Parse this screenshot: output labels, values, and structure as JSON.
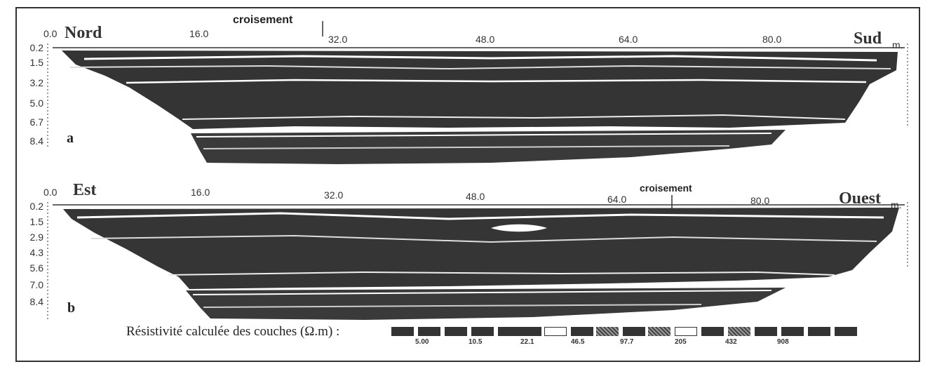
{
  "panel_a": {
    "letter": "a",
    "left_label": "Nord",
    "right_label": "Sud",
    "unit": "m.",
    "crossing_label": "croisement",
    "x_ticks": [
      "0.0",
      "16.0",
      "32.0",
      "48.0",
      "64.0",
      "80.0"
    ],
    "depth_ticks": [
      "0.2",
      "1.5",
      "3.2",
      "5.0",
      "6.7",
      "8.4"
    ]
  },
  "panel_b": {
    "letter": "b",
    "left_label": "Est",
    "right_label": "Ouest",
    "unit": "m.",
    "crossing_label": "croisement",
    "x_ticks": [
      "0.0",
      "16.0",
      "32.0",
      "48.0",
      "64.0",
      "80.0"
    ],
    "depth_ticks": [
      "0.2",
      "1.5",
      "2.9",
      "4.3",
      "5.6",
      "7.0",
      "8.4"
    ]
  },
  "legend": {
    "title": "Résistivité calculée des couches (Ω.m) :",
    "values": [
      "5.00",
      "10.5",
      "22.1",
      "46.5",
      "97.7",
      "205",
      "432",
      "908"
    ]
  },
  "colors": {
    "dark": "#333333",
    "light": "#ffffff",
    "frame": "#333333"
  }
}
